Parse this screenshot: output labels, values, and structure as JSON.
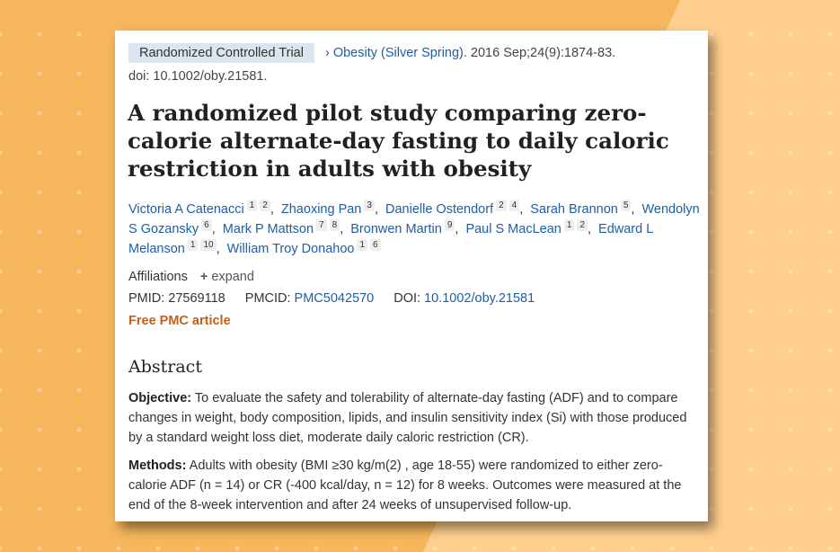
{
  "article": {
    "type_badge": "Randomized Controlled Trial",
    "journal": "Obesity (Silver Spring)",
    "citation": ". 2016 Sep;24(9):1874-83.",
    "doi_line": "doi: 10.1002/oby.21581.",
    "title": "A randomized pilot study comparing zero-calorie alternate-day fasting to daily caloric restriction in adults with obesity",
    "authors": [
      {
        "name": "Victoria A Catenacci",
        "affils": [
          "1",
          "2"
        ]
      },
      {
        "name": "Zhaoxing Pan",
        "affils": [
          "3"
        ]
      },
      {
        "name": "Danielle Ostendorf",
        "affils": [
          "2",
          "4"
        ]
      },
      {
        "name": "Sarah Brannon",
        "affils": [
          "5"
        ]
      },
      {
        "name": "Wendolyn S Gozansky",
        "affils": [
          "6"
        ]
      },
      {
        "name": "Mark P Mattson",
        "affils": [
          "7",
          "8"
        ]
      },
      {
        "name": "Bronwen Martin",
        "affils": [
          "9"
        ]
      },
      {
        "name": "Paul S MacLean",
        "affils": [
          "1",
          "2"
        ]
      },
      {
        "name": "Edward L Melanson",
        "affils": [
          "1",
          "10"
        ]
      },
      {
        "name": "William Troy Donahoo",
        "affils": [
          "1",
          "6"
        ]
      }
    ],
    "affiliations_label": "Affiliations",
    "expand_label": "expand",
    "pmid_label": "PMID:",
    "pmid": "27569118",
    "pmcid_label": "PMCID:",
    "pmcid": "PMC5042570",
    "doi_label": "DOI:",
    "doi": "10.1002/oby.21581",
    "free_pmc": "Free PMC article"
  },
  "abstract": {
    "heading": "Abstract",
    "sections": [
      {
        "label": "Objective:",
        "text": " To evaluate the safety and tolerability of alternate-day fasting (ADF) and to compare changes in weight, body composition, lipids, and insulin sensitivity index (Si) with those produced by a standard weight loss diet, moderate daily caloric restriction (CR)."
      },
      {
        "label": "Methods:",
        "text": " Adults with obesity (BMI ≥30 kg/m(2) , age 18-55) were randomized to either zero-calorie ADF (n = 14) or CR (-400 kcal/day, n = 12) for 8 weeks. Outcomes were measured at the end of the 8-week intervention and after 24 weeks of unsupervised follow-up."
      }
    ]
  }
}
